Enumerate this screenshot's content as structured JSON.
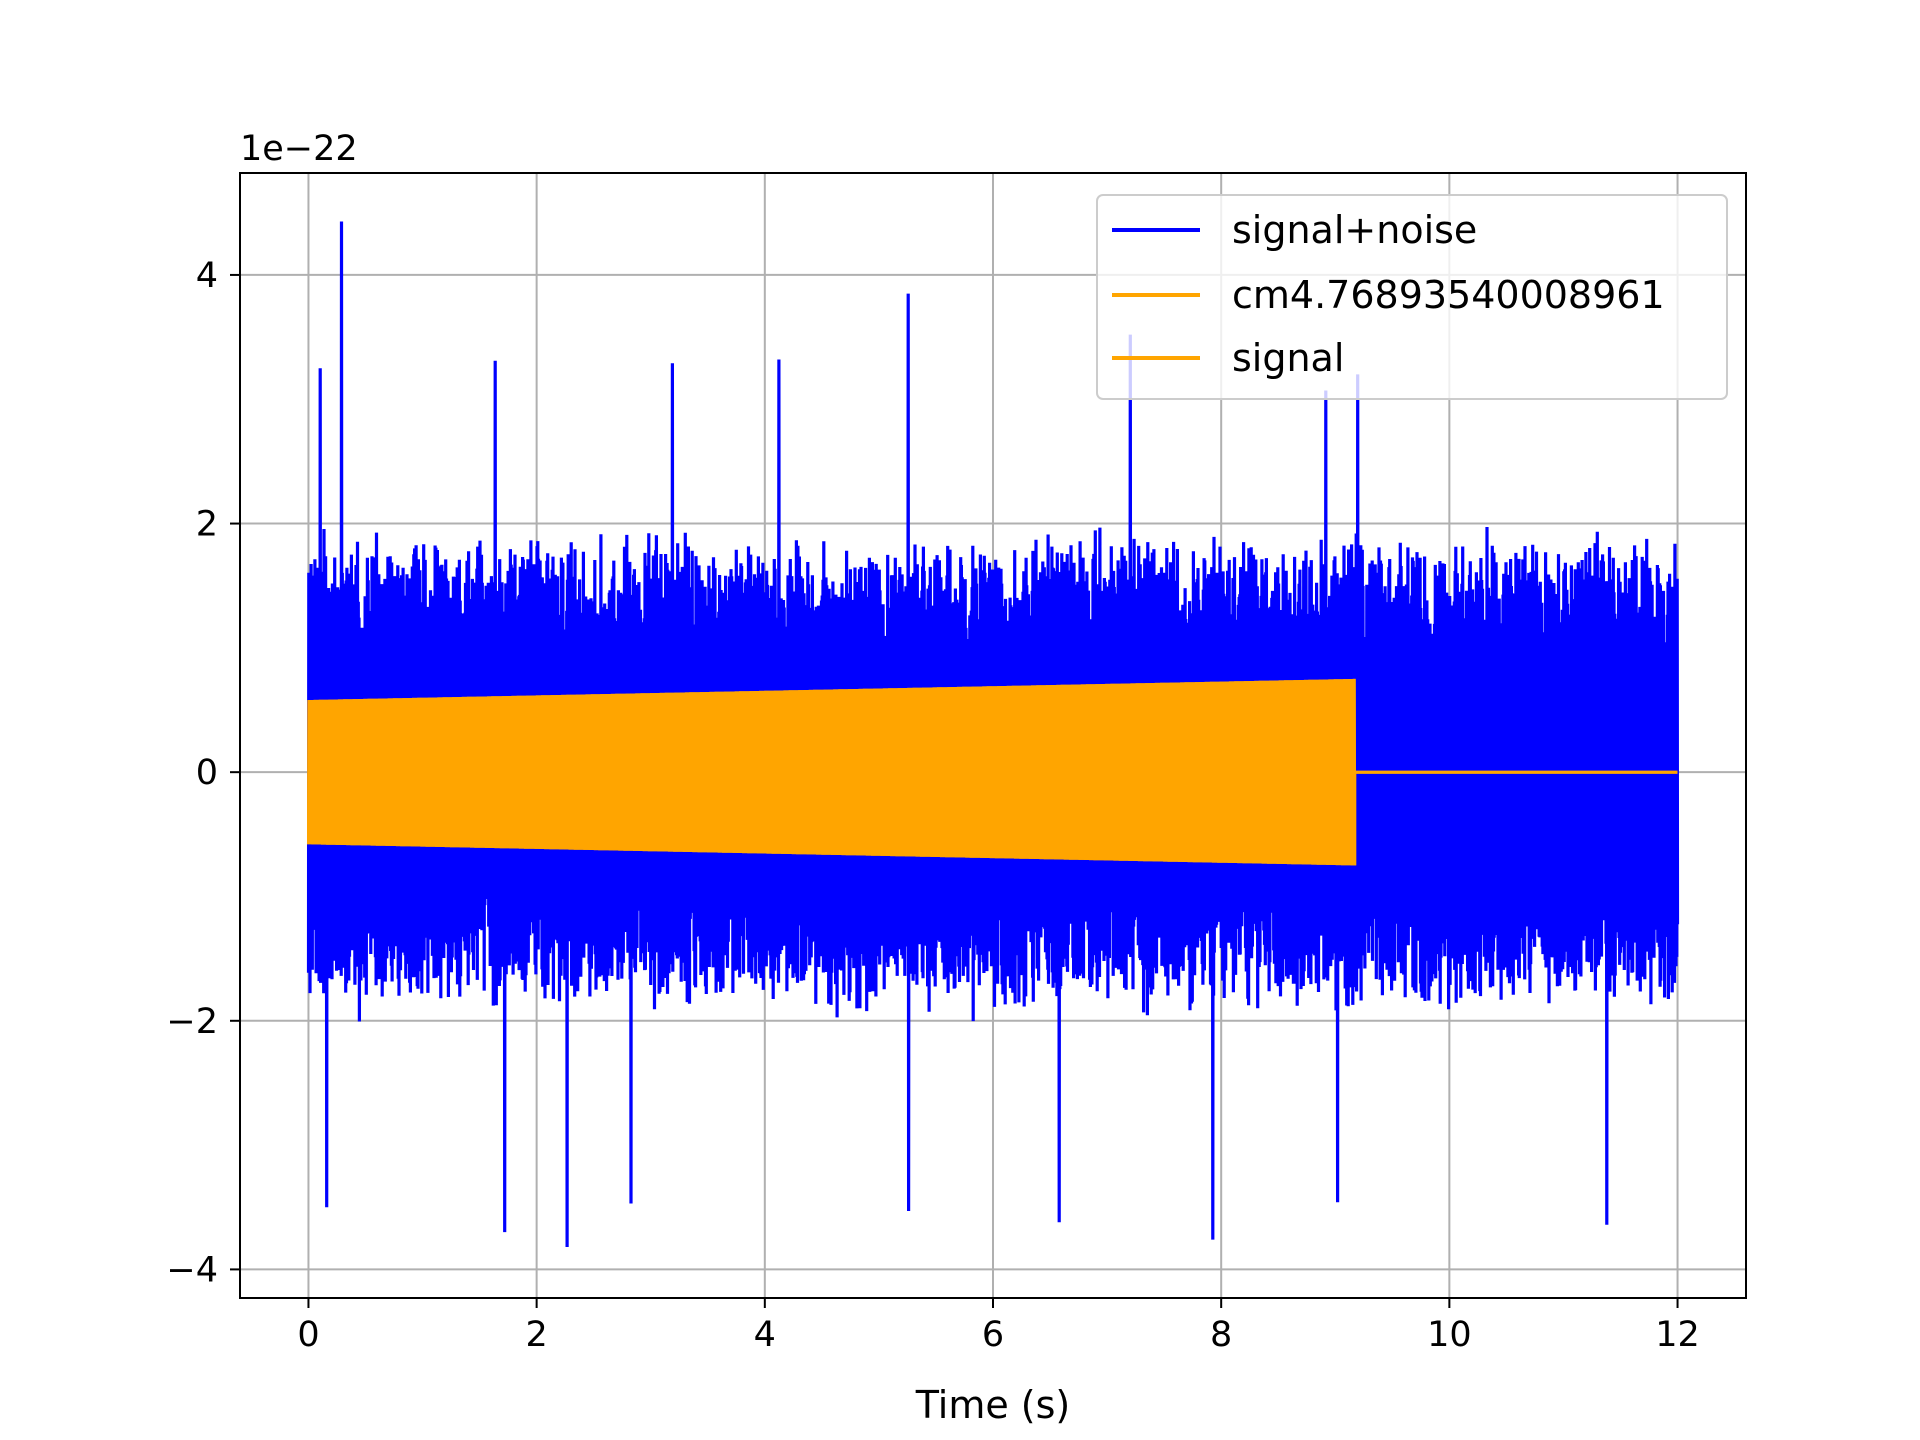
{
  "chart_data": {
    "type": "line",
    "title": "",
    "xlabel": "Time (s)",
    "ylabel": "",
    "y_offset_label": "1e−22",
    "xlim": [
      -0.6,
      12.6
    ],
    "ylim": [
      -4.23,
      4.82
    ],
    "x_ticks": [
      0,
      2,
      4,
      6,
      8,
      10,
      12
    ],
    "x_tick_labels": [
      "0",
      "2",
      "4",
      "6",
      "8",
      "10",
      "12"
    ],
    "y_ticks": [
      -4,
      -2,
      0,
      2,
      4
    ],
    "y_tick_labels": [
      "−4",
      "−2",
      "0",
      "2",
      "4"
    ],
    "grid": true,
    "legend_position": "upper right",
    "legend": [
      "signal+noise",
      "cm4.76893540008961",
      "signal"
    ],
    "series": [
      {
        "name": "signal+noise",
        "color": "#0000ff",
        "x_range": [
          0,
          12
        ],
        "description_values": {
          "typical_amplitude": 1.85,
          "peaks": [
            {
              "x": 0.29,
              "y": 4.43
            },
            {
              "x": 5.26,
              "y": 3.85
            },
            {
              "x": 7.2,
              "y": 3.52
            },
            {
              "x": 1.64,
              "y": 3.31
            },
            {
              "x": 3.19,
              "y": 3.29
            },
            {
              "x": 4.12,
              "y": 3.32
            },
            {
              "x": 9.2,
              "y": 3.2
            },
            {
              "x": 8.92,
              "y": 3.07
            },
            {
              "x": 0.1,
              "y": 3.25
            },
            {
              "x": 2.27,
              "y": -3.82
            },
            {
              "x": 7.93,
              "y": -3.76
            },
            {
              "x": 1.72,
              "y": -3.7
            },
            {
              "x": 11.38,
              "y": -3.64
            },
            {
              "x": 6.58,
              "y": -3.62
            },
            {
              "x": 5.26,
              "y": -3.53
            },
            {
              "x": 0.16,
              "y": -3.5
            },
            {
              "x": 2.83,
              "y": -3.47
            },
            {
              "x": 9.02,
              "y": -3.46
            }
          ]
        }
      },
      {
        "name": "cm4.76893540008961",
        "color": "#ffa500",
        "x": [
          0,
          9.17
        ],
        "amplitude_envelope": [
          0.58,
          0.75
        ],
        "after_end_value": 0
      },
      {
        "name": "signal",
        "color": "#ffa500",
        "x": [
          0,
          9.17
        ],
        "amplitude_envelope": [
          0.58,
          0.75
        ],
        "after_end_value": 0
      }
    ]
  }
}
